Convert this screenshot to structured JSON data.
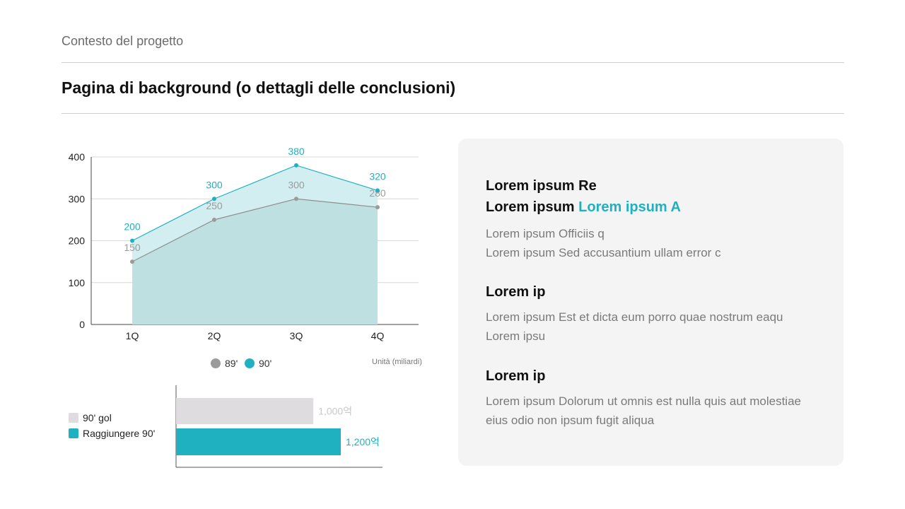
{
  "header": {
    "subtitle": "Contesto del progetto",
    "title": "Pagina di background (o dettagli delle conclusioni)"
  },
  "colors": {
    "accent": "#1fb1bf",
    "gray_series": "#9b9b9b",
    "bar_gray": "#dedcdf",
    "panel_bg": "#f4f4f5"
  },
  "chart_data": [
    {
      "type": "area",
      "categories": [
        "1Q",
        "2Q",
        "3Q",
        "4Q"
      ],
      "series": [
        {
          "name": "89'",
          "values": [
            150,
            250,
            300,
            280
          ],
          "color": "#9b9b9b"
        },
        {
          "name": "90'",
          "values": [
            200,
            300,
            380,
            320
          ],
          "color": "#1fb1bf"
        }
      ],
      "ylim": [
        0,
        400
      ],
      "yticks": [
        0,
        100,
        200,
        300,
        400
      ],
      "grid": true,
      "legend": "bottom",
      "note": "Unità (miliardi)"
    },
    {
      "type": "bar",
      "orientation": "horizontal",
      "categories": [
        "90' gol",
        "Raggiungere 90'"
      ],
      "values": [
        1000,
        1200
      ],
      "value_labels": [
        "1,000억",
        "1,200억"
      ],
      "colors": [
        "#dedcdf",
        "#1fb1bf"
      ],
      "legend": "left"
    }
  ],
  "panel": {
    "block1": {
      "heading_line1": "Lorem ipsum Re",
      "heading_line2_prefix": "Lorem ipsum ",
      "heading_line2_accent": "Lorem ipsum A",
      "body_line1": "Lorem ipsum Officiis q",
      "body_line2": "Lorem ipsum Sed accusantium ullam error c"
    },
    "block2": {
      "heading": "Lorem ip",
      "body_line1": "Lorem ipsum Est et dicta eum porro quae nostrum eaqu",
      "body_line2": "Lorem ipsu"
    },
    "block3": {
      "heading": "Lorem ip",
      "body_line1": "Lorem ipsum Dolorum ut omnis est nulla quis aut molestiae",
      "body_line2": "eius odio non ipsum fugit aliqua"
    }
  }
}
